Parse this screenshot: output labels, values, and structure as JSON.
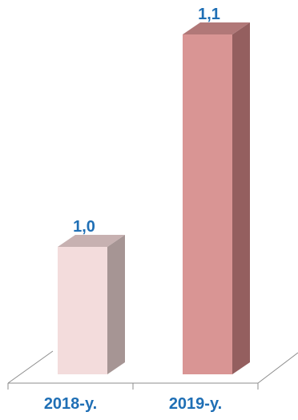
{
  "chart_data": {
    "type": "bar",
    "categories": [
      "2018-y.",
      "2019-y."
    ],
    "values": [
      1.0,
      1.1
    ],
    "value_labels": [
      "1,0",
      "1,1"
    ],
    "colors": {
      "front": [
        "#f3dcdc",
        "#d99594"
      ],
      "side": [
        "#a69594",
        "#945f5f"
      ],
      "top": [
        "#c7b1b1",
        "#b17878"
      ],
      "label": "#1f6fb5",
      "floor": "#8c8c8c"
    },
    "title": "",
    "xlabel": "",
    "ylabel": "",
    "grid": false,
    "legend": false
  }
}
